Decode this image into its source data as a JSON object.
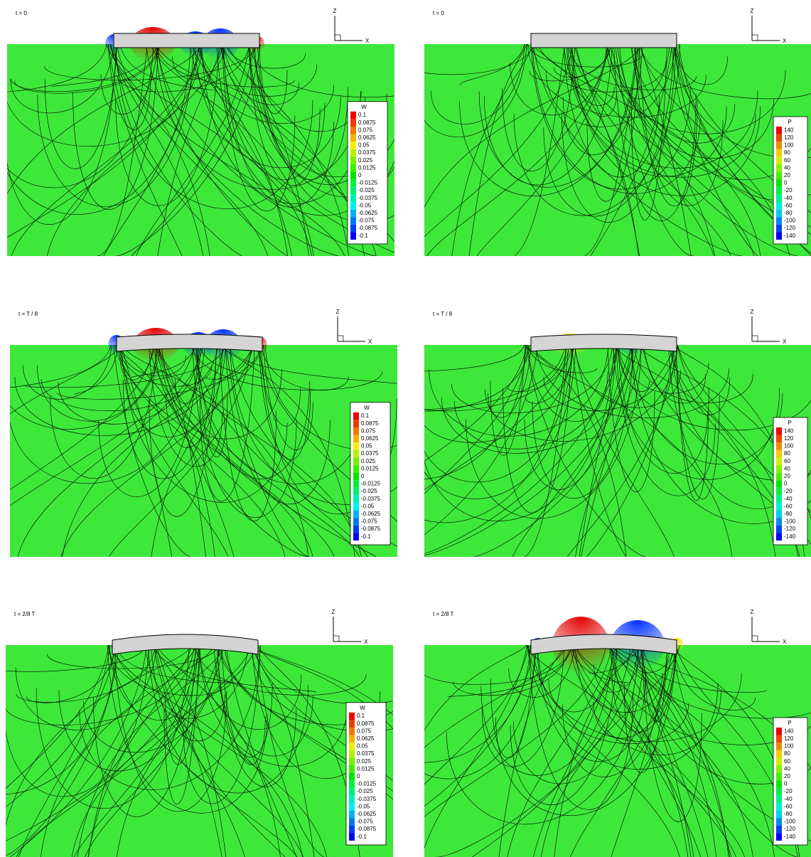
{
  "panels": [
    {
      "time": "t = 0",
      "axis_z": "Z",
      "axis_x": "X",
      "legend": {
        "title": "W",
        "labels": [
          "0.1",
          "0.0875",
          "0.075",
          "0.0625",
          "0.05",
          "0.0375",
          "0.025",
          "0.0125",
          "0",
          "-0.0125",
          "-0.025",
          "-0.0375",
          "-0.05",
          "-0.0625",
          "-0.075",
          "-0.0875",
          "-0.1"
        ]
      }
    },
    {
      "time": "t = 0",
      "axis_z": "Z",
      "axis_x": "X",
      "legend": {
        "title": "P",
        "labels": [
          "140",
          "120",
          "100",
          "80",
          "60",
          "40",
          "20",
          "0",
          "-20",
          "-40",
          "-60",
          "-80",
          "-100",
          "-120",
          "-140"
        ]
      }
    },
    {
      "time": "t = T / 8",
      "axis_z": "Z",
      "axis_x": "X",
      "legend": {
        "title": "W",
        "labels": [
          "0.1",
          "0.0875",
          "0.075",
          "0.0625",
          "0.05",
          "0.0375",
          "0.025",
          "0.0125",
          "0",
          "-0.0125",
          "-0.025",
          "-0.0375",
          "-0.05",
          "-0.0625",
          "-0.075",
          "-0.0875",
          "-0.1"
        ]
      }
    },
    {
      "time": "t = T / 8",
      "axis_z": "Z",
      "axis_x": "X",
      "legend": {
        "title": "P",
        "labels": [
          "140",
          "120",
          "100",
          "80",
          "60",
          "40",
          "20",
          "0",
          "-20",
          "-40",
          "-60",
          "-80",
          "-100",
          "-120",
          "-140"
        ]
      }
    },
    {
      "time": "t = 2/8 T",
      "axis_z": "Z",
      "axis_x": "X",
      "legend": {
        "title": "W",
        "labels": [
          "0.1",
          "0.0875",
          "0.075",
          "0.0625",
          "0.05",
          "0.0375",
          "0.025",
          "0.0125",
          "0",
          "-0.0125",
          "-0.025",
          "-0.0375",
          "-0.05",
          "-0.0625",
          "-0.075",
          "-0.0875",
          "-0.1"
        ]
      }
    },
    {
      "time": "t = 2/8 T",
      "axis_z": "Z",
      "axis_x": "X",
      "legend": {
        "title": "P",
        "labels": [
          "140",
          "120",
          "100",
          "80",
          "60",
          "40",
          "20",
          "0",
          "-20",
          "-40",
          "-60",
          "-80",
          "-100",
          "-120",
          "-140"
        ]
      }
    }
  ]
}
